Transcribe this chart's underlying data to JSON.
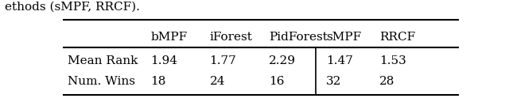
{
  "col_labels": [
    "",
    "bMPF",
    "iForest",
    "PidForest",
    "sMPF",
    "RRCF"
  ],
  "row_labels": [
    "Mean Rank",
    "Num. Wins"
  ],
  "values": [
    [
      "1.94",
      "1.77",
      "2.29",
      "1.47",
      "1.53"
    ],
    [
      "18",
      "24",
      "16",
      "32",
      "28"
    ]
  ],
  "top_text": "ethods (sMPF, RRCF).",
  "background_color": "#ffffff",
  "fontsize": 11
}
